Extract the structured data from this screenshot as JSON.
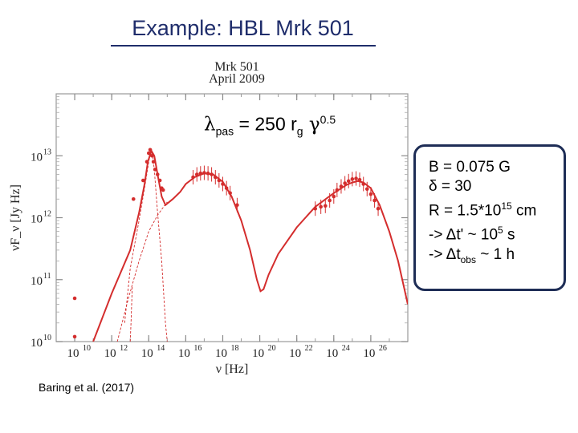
{
  "slide": {
    "title": "Example: HBL Mrk 501",
    "citation": "Baring et al. (2017)"
  },
  "formula": {
    "lambda": "λ",
    "lambda_sub": "pas",
    "equals": " = 250 r",
    "r_sub": "g",
    "gamma": " γ",
    "gamma_sup": "0.5"
  },
  "params": {
    "line1": "B = 0.075 G",
    "line2": "δ = 30",
    "line3_prefix": "R = 1.5*10",
    "line3_sup": "15",
    "line3_suffix": " cm",
    "line4_prefix": "-> Δt' ~ 10",
    "line4_sup": "5",
    "line4_suffix": " s",
    "line5_prefix": "-> Δt",
    "line5_sub": "obs",
    "line5_suffix": " ~ 1 h"
  },
  "chart_data": {
    "type": "scatter",
    "title": "Mrk 501",
    "subtitle": "April 2009",
    "xlabel": "ν [Hz]",
    "ylabel": "νF_ν [Jy Hz]",
    "x_log": true,
    "y_log": true,
    "xlim": [
      1000000000.0,
      1e+28
    ],
    "ylim": [
      10000000000.0,
      100000000000000.0
    ],
    "x_ticks": [
      {
        "exp": "10",
        "value": 10000000000.0
      },
      {
        "exp": "12",
        "value": 1000000000000.0
      },
      {
        "exp": "14",
        "value": 100000000000000.0
      },
      {
        "exp": "16",
        "value": 1e+16
      },
      {
        "exp": "18",
        "value": 1e+18
      },
      {
        "exp": "20",
        "value": 1e+20
      },
      {
        "exp": "22",
        "value": 1e+22
      },
      {
        "exp": "24",
        "value": 1e+24
      },
      {
        "exp": "26",
        "value": 1e+26
      }
    ],
    "y_ticks": [
      {
        "exp": "10",
        "value": 10000000000.0
      },
      {
        "exp": "11",
        "value": 100000000000.0
      },
      {
        "exp": "12",
        "value": 1000000000000.0
      },
      {
        "exp": "13",
        "value": 10000000000000.0
      }
    ],
    "series": [
      {
        "kind": "points",
        "color": "#d42d2d",
        "points": [
          [
            10000000000.0,
            50000000000.0
          ],
          [
            10000000000.0,
            12000000000.0
          ],
          [
            15000000000000.0,
            2000000000000.0
          ],
          [
            50000000000000.0,
            4000000000000.0
          ],
          [
            80000000000000.0,
            8000000000000.0
          ],
          [
            100000000000000.0,
            11000000000000.0
          ],
          [
            120000000000000.0,
            12500000000000.0
          ],
          [
            150000000000000.0,
            10000000000000.0
          ],
          [
            180000000000000.0,
            8000000000000.0
          ],
          [
            220000000000000.0,
            6000000000000.0
          ],
          [
            300000000000000.0,
            5000000000000.0
          ],
          [
            400000000000000.0,
            4000000000000.0
          ],
          [
            500000000000000.0,
            3000000000000.0
          ],
          [
            600000000000000.0,
            2800000000000.0
          ],
          [
            2.5e+16,
            4500000000000.0
          ],
          [
            4e+16,
            5000000000000.0
          ],
          [
            6.3e+16,
            5200000000000.0
          ],
          [
            1e+17,
            5300000000000.0
          ],
          [
            1.6e+17,
            5200000000000.0
          ],
          [
            2.5e+17,
            5000000000000.0
          ],
          [
            4e+17,
            4500000000000.0
          ],
          [
            6.3e+17,
            4000000000000.0
          ],
          [
            1e+18,
            3500000000000.0
          ],
          [
            1.6e+18,
            3000000000000.0
          ],
          [
            2.5e+18,
            2500000000000.0
          ],
          [
            6e+18,
            1600000000000.0
          ],
          [
            1e+23,
            1400000000000.0
          ],
          [
            2e+23,
            1500000000000.0
          ],
          [
            3.5e+23,
            1550000000000.0
          ],
          [
            6e+23,
            1900000000000.0
          ],
          [
            1e+24,
            2200000000000.0
          ],
          [
            1.5e+24,
            2800000000000.0
          ],
          [
            2.5e+24,
            3200000000000.0
          ],
          [
            4e+24,
            3600000000000.0
          ],
          [
            6.3e+24,
            3900000000000.0
          ],
          [
            1e+25,
            4200000000000.0
          ],
          [
            1.6e+25,
            4300000000000.0
          ],
          [
            2.5e+25,
            4100000000000.0
          ],
          [
            4e+25,
            3500000000000.0
          ],
          [
            6.3e+25,
            2900000000000.0
          ],
          [
            1e+26,
            2400000000000.0
          ],
          [
            1.6e+26,
            1900000000000.0
          ],
          [
            2.5e+26,
            1400000000000.0
          ]
        ]
      },
      {
        "kind": "line",
        "color": "#d42d2d",
        "style": "solid",
        "points": [
          [
            100000000000.0,
            10000000000.0
          ],
          [
            1000000000000.0,
            60000000000.0
          ],
          [
            10000000000000.0,
            300000000000.0
          ],
          [
            30000000000000.0,
            1200000000000.0
          ],
          [
            60000000000000.0,
            3500000000000.0
          ],
          [
            90000000000000.0,
            8000000000000.0
          ],
          [
            140000000000000.0,
            12000000000000.0
          ],
          [
            200000000000000.0,
            10000000000000.0
          ],
          [
            300000000000000.0,
            5000000000000.0
          ],
          [
            500000000000000.0,
            2200000000000.0
          ],
          [
            800000000000000.0,
            1600000000000.0
          ],
          [
            2000000000000000.0,
            2000000000000.0
          ],
          [
            5000000000000000.0,
            2600000000000.0
          ],
          [
            1e+16,
            3500000000000.0
          ],
          [
            3e+16,
            4500000000000.0
          ],
          [
            1e+17,
            5200000000000.0
          ],
          [
            3e+17,
            5000000000000.0
          ],
          [
            1e+18,
            3800000000000.0
          ],
          [
            3e+18,
            2200000000000.0
          ],
          [
            1e+19,
            900000000000.0
          ],
          [
            3e+19,
            300000000000.0
          ],
          [
            7e+19,
            100000000000.0
          ],
          [
            1.1e+20,
            65000000000.0
          ],
          [
            1.6e+20,
            70000000000.0
          ],
          [
            3e+20,
            120000000000.0
          ],
          [
            1e+21,
            260000000000.0
          ],
          [
            1e+22,
            700000000000.0
          ],
          [
            1e+23,
            1500000000000.0
          ],
          [
            1e+24,
            2500000000000.0
          ],
          [
            5e+24,
            3400000000000.0
          ],
          [
            1e+25,
            3700000000000.0
          ],
          [
            2e+25,
            3900000000000.0
          ],
          [
            4e+25,
            3700000000000.0
          ],
          [
            1e+26,
            3000000000000.0
          ],
          [
            3e+26,
            1600000000000.0
          ],
          [
            1e+27,
            600000000000.0
          ],
          [
            3e+27,
            200000000000.0
          ],
          [
            1e+28,
            40000000000.0
          ]
        ]
      },
      {
        "kind": "line",
        "color": "#d42d2d",
        "style": "dashed",
        "points": [
          [
            5000000000000.0,
            20000000000.0
          ],
          [
            10000000000000.0,
            150000000000.0
          ],
          [
            30000000000000.0,
            900000000000.0
          ],
          [
            60000000000000.0,
            3000000000000.0
          ],
          [
            100000000000000.0,
            8000000000000.0
          ],
          [
            130000000000000.0,
            12000000000000.0
          ],
          [
            160000000000000.0,
            10500000000000.0
          ],
          [
            200000000000000.0,
            6000000000000.0
          ],
          [
            300000000000000.0,
            1200000000000.0
          ],
          [
            500000000000000.0,
            200000000000.0
          ],
          [
            800000000000000.0,
            20000000000.0
          ],
          [
            1000000000000000.0,
            10000000000.0
          ]
        ]
      },
      {
        "kind": "line",
        "color": "#d42d2d",
        "style": "dashed",
        "points": [
          [
            2000000000000.0,
            10000000000.0
          ],
          [
            8000000000000.0,
            50000000000.0
          ],
          [
            30000000000000.0,
            200000000000.0
          ],
          [
            100000000000000.0,
            600000000000.0
          ],
          [
            300000000000000.0,
            1100000000000.0
          ],
          [
            1000000000000000.0,
            1800000000000.0
          ]
        ]
      },
      {
        "kind": "line",
        "color": "#d42d2d",
        "style": "dashed",
        "points": [
          [
            10000000000000.0,
            10000000000.0
          ],
          [
            11000000000000.0,
            20000000000.0
          ],
          [
            13000000000000.0,
            80000000000.0
          ]
        ]
      }
    ]
  }
}
